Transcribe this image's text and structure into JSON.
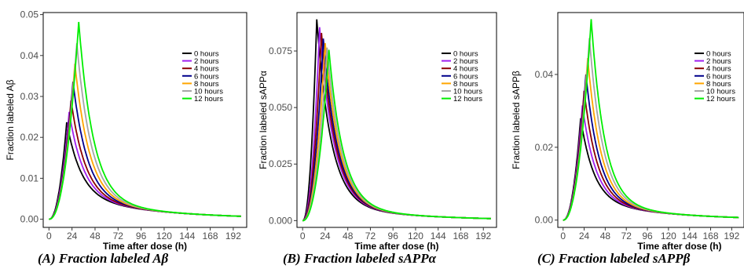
{
  "chart_data": [
    {
      "type": "line",
      "ylabel": "Fraction labeled Aβ",
      "xlabel": "Time after dose (h)",
      "xlim": [
        -6,
        206
      ],
      "ylim": [
        -0.002,
        0.0505
      ],
      "xticks": [
        0,
        24,
        48,
        72,
        96,
        120,
        144,
        168,
        192
      ],
      "yticks": [
        0.0,
        0.01,
        0.02,
        0.03,
        0.04,
        0.05
      ],
      "ytick_labels": [
        "0.00",
        "0.01",
        "0.02",
        "0.03",
        "0.04",
        "0.05"
      ],
      "grid": false,
      "legend_position": "top-right",
      "caption": "(A) Fraction labeled Aβ",
      "series": [
        {
          "name": "0 hours",
          "color": "#000000",
          "peak_x": 18.5,
          "peak_y": 0.0237,
          "tail_y": 0.0008
        },
        {
          "name": "2 hours",
          "color": "#a020f0",
          "peak_x": 21.0,
          "peak_y": 0.0262,
          "tail_y": 0.0008
        },
        {
          "name": "4 hours",
          "color": "#8b0000",
          "peak_x": 23.0,
          "peak_y": 0.029,
          "tail_y": 0.0008
        },
        {
          "name": "6 hours",
          "color": "#00008b",
          "peak_x": 25.0,
          "peak_y": 0.0336,
          "tail_y": 0.0008
        },
        {
          "name": "8 hours",
          "color": "#ffa500",
          "peak_x": 27.0,
          "peak_y": 0.038,
          "tail_y": 0.0008
        },
        {
          "name": "10 hours",
          "color": "#a6a6a6",
          "peak_x": 29.0,
          "peak_y": 0.043,
          "tail_y": 0.0008
        },
        {
          "name": "12 hours",
          "color": "#00ee00",
          "peak_x": 31.0,
          "peak_y": 0.0482,
          "tail_y": 0.0008
        }
      ]
    },
    {
      "type": "line",
      "ylabel": "Fraction labeled sAPPα",
      "xlabel": "Time after dose (h)",
      "xlim": [
        -6,
        206
      ],
      "ylim": [
        -0.003,
        0.092
      ],
      "xticks": [
        0,
        24,
        48,
        72,
        96,
        120,
        144,
        168,
        192
      ],
      "yticks": [
        0.0,
        0.025,
        0.05,
        0.075
      ],
      "ytick_labels": [
        "0.000",
        "0.025",
        "0.050",
        "0.075"
      ],
      "grid": false,
      "legend_position": "top-right",
      "caption": "(B) Fraction labeled sAPPα",
      "series": [
        {
          "name": "0 hours",
          "color": "#000000",
          "peak_x": 15.0,
          "peak_y": 0.089,
          "tail_y": 0.001
        },
        {
          "name": "2 hours",
          "color": "#a020f0",
          "peak_x": 18.0,
          "peak_y": 0.0855,
          "tail_y": 0.001
        },
        {
          "name": "4 hours",
          "color": "#8b0000",
          "peak_x": 20.0,
          "peak_y": 0.083,
          "tail_y": 0.001
        },
        {
          "name": "6 hours",
          "color": "#00008b",
          "peak_x": 22.0,
          "peak_y": 0.0805,
          "tail_y": 0.001
        },
        {
          "name": "8 hours",
          "color": "#ffa500",
          "peak_x": 24.0,
          "peak_y": 0.0785,
          "tail_y": 0.001
        },
        {
          "name": "10 hours",
          "color": "#a6a6a6",
          "peak_x": 26.0,
          "peak_y": 0.0765,
          "tail_y": 0.001
        },
        {
          "name": "12 hours",
          "color": "#00ee00",
          "peak_x": 28.0,
          "peak_y": 0.0755,
          "tail_y": 0.001
        }
      ]
    },
    {
      "type": "line",
      "ylabel": "Fraction labeled sAPPβ",
      "xlabel": "Time after dose (h)",
      "xlim": [
        -6,
        206
      ],
      "ylim": [
        -0.002,
        0.057
      ],
      "xticks": [
        0,
        24,
        48,
        72,
        96,
        120,
        144,
        168,
        192
      ],
      "yticks": [
        0.0,
        0.02,
        0.04
      ],
      "ytick_labels": [
        "0.00",
        "0.02",
        "0.04"
      ],
      "grid": false,
      "legend_position": "top-right",
      "caption": "(C) Fraction labeled sAPPβ",
      "series": [
        {
          "name": "0 hours",
          "color": "#000000",
          "peak_x": 20.0,
          "peak_y": 0.028,
          "tail_y": 0.0008
        },
        {
          "name": "2 hours",
          "color": "#a020f0",
          "peak_x": 22.0,
          "peak_y": 0.0315,
          "tail_y": 0.0008
        },
        {
          "name": "4 hours",
          "color": "#8b0000",
          "peak_x": 24.0,
          "peak_y": 0.0355,
          "tail_y": 0.0008
        },
        {
          "name": "6 hours",
          "color": "#00008b",
          "peak_x": 26.0,
          "peak_y": 0.04,
          "tail_y": 0.0008
        },
        {
          "name": "8 hours",
          "color": "#ffa500",
          "peak_x": 28.0,
          "peak_y": 0.0445,
          "tail_y": 0.0008
        },
        {
          "name": "10 hours",
          "color": "#a6a6a6",
          "peak_x": 30.0,
          "peak_y": 0.05,
          "tail_y": 0.0008
        },
        {
          "name": "12 hours",
          "color": "#00ee00",
          "peak_x": 32.0,
          "peak_y": 0.0552,
          "tail_y": 0.0008
        }
      ]
    }
  ]
}
